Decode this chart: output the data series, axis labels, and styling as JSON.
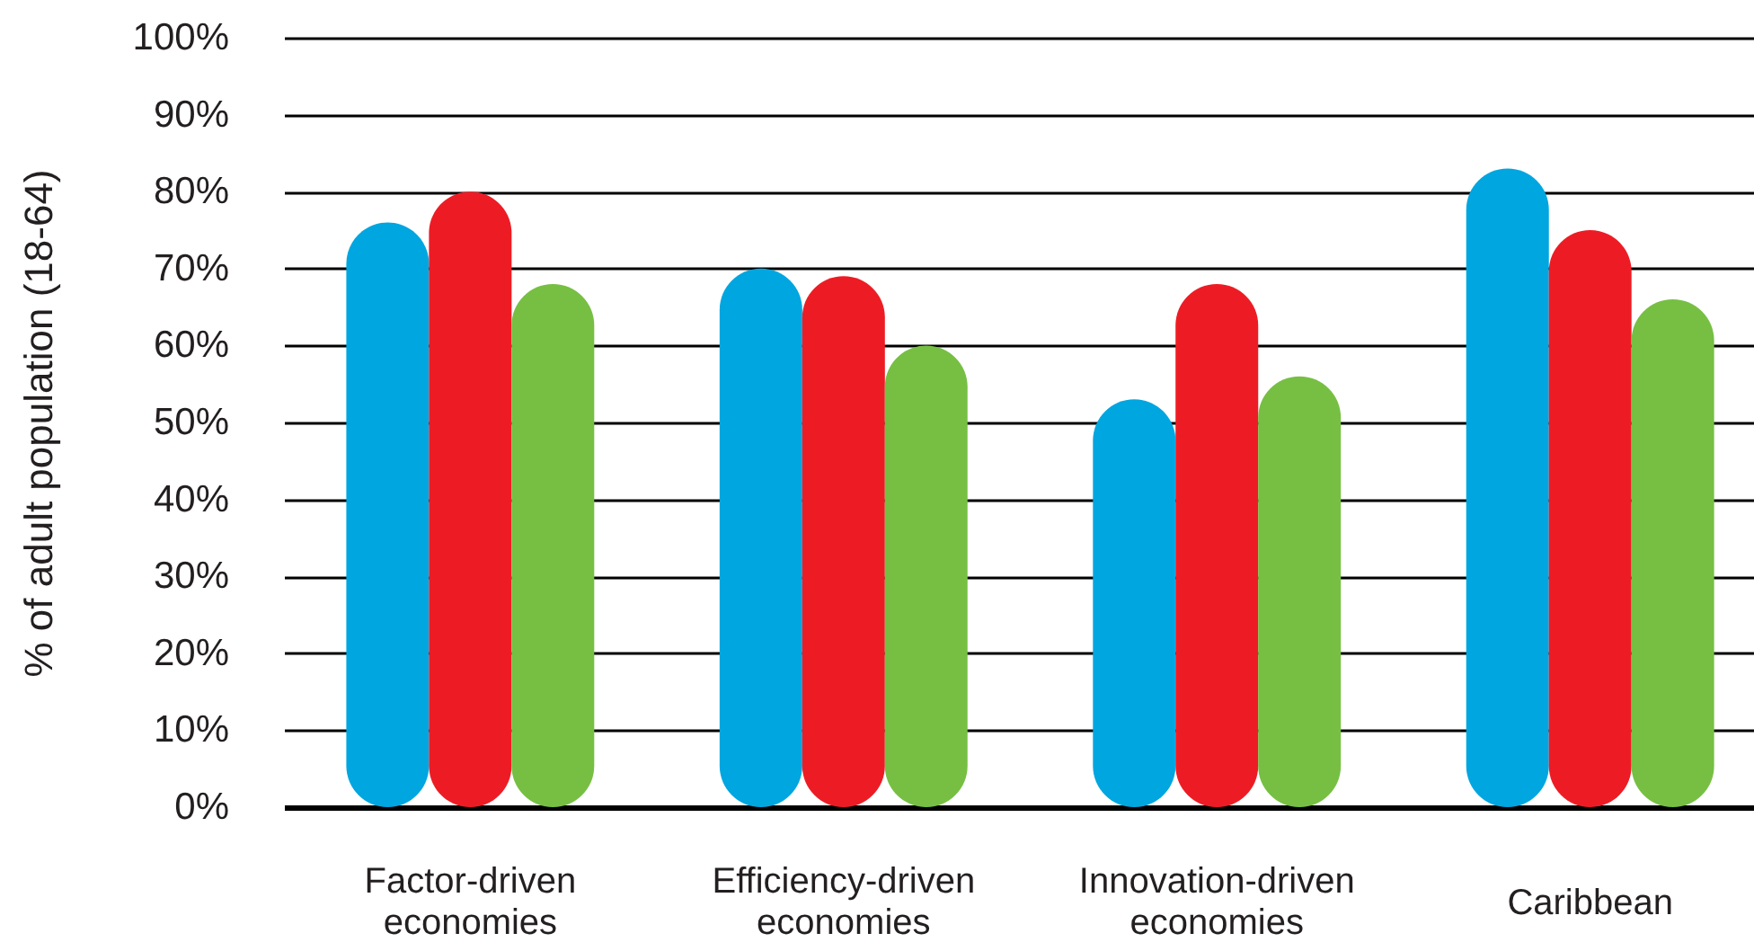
{
  "chart_data": {
    "type": "bar",
    "ylabel": "% of adult population (18-64)",
    "categories": [
      "Factor-driven economies",
      "Efficiency-driven economies",
      "Innovation-driven economies",
      "Caribbean"
    ],
    "series": [
      {
        "color": "#00a6e0",
        "values": [
          76,
          70,
          53,
          83
        ]
      },
      {
        "color": "#ed1c24",
        "values": [
          80,
          69,
          68,
          75
        ]
      },
      {
        "color": "#76bf43",
        "values": [
          68,
          60,
          56,
          66
        ]
      }
    ],
    "ylim": [
      0,
      100
    ],
    "yticks": [
      {
        "value": 0,
        "label": "0%"
      },
      {
        "value": 10,
        "label": "10%"
      },
      {
        "value": 20,
        "label": "20%"
      },
      {
        "value": 30,
        "label": "30%"
      },
      {
        "value": 40,
        "label": "40%"
      },
      {
        "value": 50,
        "label": "50%"
      },
      {
        "value": 60,
        "label": "60%"
      },
      {
        "value": 70,
        "label": "70%"
      },
      {
        "value": 80,
        "label": "80%"
      },
      {
        "value": 90,
        "label": "90%"
      },
      {
        "value": 100,
        "label": "100%"
      }
    ],
    "grid": "y"
  }
}
